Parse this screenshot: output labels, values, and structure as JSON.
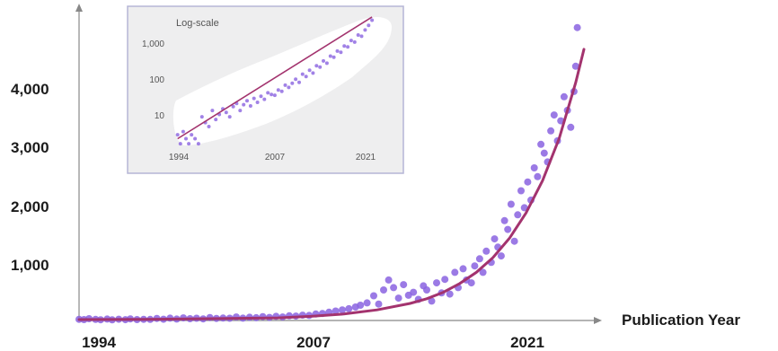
{
  "chart_data": [
    {
      "type": "scatter",
      "title": "",
      "xlabel": "Publication Year",
      "ylabel": "",
      "x_ticks": [
        "1994",
        "2007",
        "2021"
      ],
      "y_ticks": [
        "1,000",
        "2,000",
        "3,000",
        "4,000"
      ],
      "xlim": [
        1994,
        2024.5
      ],
      "ylim": [
        0,
        5000
      ],
      "grid": false,
      "colors": {
        "points": "#8a63e0",
        "trend": "#a3336e",
        "axis": "#888888"
      },
      "series": [
        {
          "type": "scatter",
          "x": [
            1994.0,
            1994.3,
            1994.6,
            1995.0,
            1995.3,
            1995.7,
            1996.0,
            1996.4,
            1996.8,
            1997.1,
            1997.5,
            1997.9,
            1998.3,
            1998.7,
            1999.1,
            1999.5,
            1999.9,
            2000.3,
            2000.7,
            2001.1,
            2001.5,
            2001.9,
            2002.3,
            2002.7,
            2003.1,
            2003.5,
            2003.9,
            2004.3,
            2004.7,
            2005.1,
            2005.5,
            2005.9,
            2006.3,
            2006.7,
            2007.1,
            2007.5,
            2007.9,
            2008.3,
            2008.7,
            2009.1,
            2009.5,
            2009.9,
            2010.3,
            2010.7,
            2011.0,
            2011.4,
            2011.8,
            2012.1,
            2012.4,
            2012.7,
            2013.0,
            2013.3,
            2013.6,
            2013.9,
            2014.2,
            2014.5,
            2014.8,
            2015.0,
            2015.3,
            2015.6,
            2015.9,
            2016.1,
            2016.4,
            2016.7,
            2016.9,
            2017.2,
            2017.4,
            2017.7,
            2017.9,
            2018.2,
            2018.4,
            2018.6,
            2018.9,
            2019.1,
            2019.3,
            2019.5,
            2019.7,
            2019.9,
            2020.1,
            2020.3,
            2020.5,
            2020.7,
            2020.9,
            2021.1,
            2021.3,
            2021.5,
            2021.7,
            2021.9,
            2022.1,
            2022.3,
            2022.5,
            2022.7,
            2022.9,
            2023.1,
            2023.3,
            2023.5,
            2023.7,
            2023.9,
            2024.0,
            2024.1
          ],
          "y": [
            20,
            15,
            30,
            18,
            12,
            25,
            10,
            22,
            14,
            28,
            16,
            20,
            18,
            35,
            22,
            40,
            25,
            45,
            30,
            38,
            28,
            50,
            35,
            42,
            38,
            60,
            40,
            55,
            48,
            65,
            52,
            70,
            60,
            80,
            75,
            90,
            85,
            110,
            120,
            140,
            160,
            180,
            200,
            230,
            260,
            300,
            420,
            280,
            520,
            690,
            560,
            380,
            610,
            430,
            480,
            360,
            590,
            520,
            330,
            640,
            470,
            700,
            450,
            820,
            560,
            880,
            690,
            640,
            930,
            1050,
            820,
            1180,
            990,
            1390,
            1250,
            1100,
            1700,
            1550,
            1980,
            1350,
            1800,
            2210,
            1920,
            2360,
            2050,
            2600,
            2450,
            3000,
            2850,
            2700,
            3230,
            3500,
            3060,
            3400,
            3810,
            3580,
            3290,
            3900,
            4330,
            4990
          ]
        },
        {
          "type": "line",
          "name": "",
          "x": [
            1994,
            1998,
            2002,
            2006,
            2008,
            2010,
            2012,
            2014,
            2015,
            2016,
            2017,
            2018,
            2019,
            2020,
            2021,
            2022,
            2023,
            2024,
            2024.5
          ],
          "y": [
            15,
            20,
            30,
            45,
            70,
            110,
            180,
            290,
            370,
            480,
            630,
            820,
            1070,
            1400,
            1830,
            2380,
            3100,
            4050,
            4620
          ]
        }
      ]
    },
    {
      "type": "scatter",
      "title": "Log-scale",
      "xlabel": "",
      "ylabel": "",
      "x_ticks": [
        "1994",
        "2007",
        "2021"
      ],
      "y_ticks": [
        "10",
        "100",
        "1,000"
      ],
      "xlim": [
        1993,
        2022.5
      ],
      "ylim": [
        2,
        6000
      ],
      "y_scale": "log",
      "grid": false,
      "series": [
        {
          "type": "scatter",
          "x": [
            1994.0,
            1994.4,
            1994.8,
            1995.2,
            1995.6,
            1996.0,
            1996.5,
            1997.0,
            1997.5,
            1998.0,
            1998.5,
            1999.0,
            1999.5,
            2000.0,
            2000.5,
            2001.0,
            2001.5,
            2002.0,
            2002.5,
            2003.0,
            2003.5,
            2004.0,
            2004.5,
            2005.0,
            2005.5,
            2006.0,
            2006.5,
            2007.0,
            2007.5,
            2008.0,
            2008.5,
            2009.0,
            2009.5,
            2010.0,
            2010.5,
            2011.0,
            2011.5,
            2012.0,
            2012.5,
            2013.0,
            2013.5,
            2014.0,
            2014.5,
            2015.0,
            2015.5,
            2016.0,
            2016.5,
            2017.0,
            2017.5,
            2018.0,
            2018.5,
            2019.0,
            2019.5,
            2020.0,
            2020.5,
            2021.0,
            2021.5,
            2022.0
          ],
          "y": [
            5,
            3,
            6,
            4,
            3,
            5,
            4,
            3,
            14,
            10,
            8,
            20,
            12,
            16,
            22,
            18,
            14,
            25,
            30,
            20,
            28,
            35,
            26,
            40,
            32,
            45,
            38,
            55,
            50,
            48,
            65,
            60,
            85,
            75,
            95,
            120,
            100,
            160,
            140,
            200,
            170,
            260,
            240,
            340,
            300,
            450,
            420,
            600,
            560,
            800,
            760,
            1100,
            1000,
            1500,
            1400,
            2000,
            2600,
            3500
          ]
        },
        {
          "type": "line",
          "name": "",
          "x": [
            1994,
            2022
          ],
          "y": [
            4,
            4200
          ]
        }
      ]
    }
  ]
}
